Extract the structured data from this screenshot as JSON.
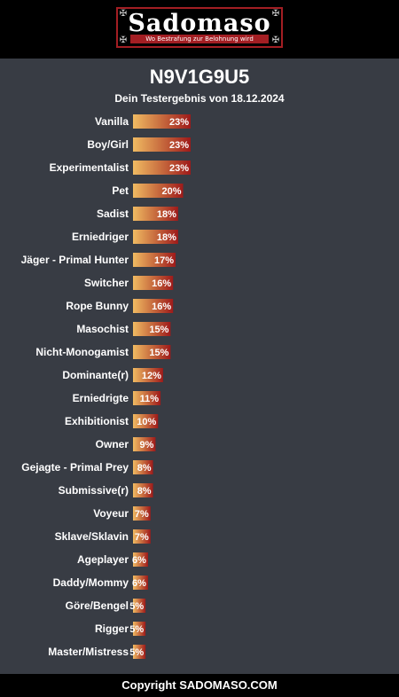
{
  "header": {
    "logo_title": "Sadomaso",
    "logo_subtitle": "Wo Bestrafung zur Belohnung wird",
    "logo_corner_icon": "ornament-icon"
  },
  "result": {
    "id": "N9V1G9U5",
    "subtitle": "Dein Testergebnis von 18.12.2024"
  },
  "chart_data": {
    "type": "bar",
    "orientation": "horizontal",
    "categories": [
      "Vanilla",
      "Boy/Girl",
      "Experimentalist",
      "Pet",
      "Sadist",
      "Erniedriger",
      "Jäger - Primal Hunter",
      "Switcher",
      "Rope Bunny",
      "Masochist",
      "Nicht-Monogamist",
      "Dominante(r)",
      "Erniedrigte",
      "Exhibitionist",
      "Owner",
      "Gejagte - Primal Prey",
      "Submissive(r)",
      "Voyeur",
      "Sklave/Sklavin",
      "Ageplayer",
      "Daddy/Mommy",
      "Göre/Bengel",
      "Rigger",
      "Master/Mistress"
    ],
    "values": [
      23,
      23,
      23,
      20,
      18,
      18,
      17,
      16,
      16,
      15,
      15,
      12,
      11,
      10,
      9,
      8,
      8,
      7,
      7,
      6,
      6,
      5,
      5,
      5
    ],
    "labels": [
      "23%",
      "23%",
      "23%",
      "20%",
      "18%",
      "18%",
      "17%",
      "16%",
      "16%",
      "15%",
      "15%",
      "12%",
      "11%",
      "10%",
      "9%",
      "8%",
      "8%",
      "7%",
      "7%",
      "6%",
      "6%",
      "5%",
      "5%",
      "5%"
    ],
    "value_unit": "%",
    "xlim": [
      0,
      100
    ],
    "grid": false,
    "legend": "none",
    "colors": {
      "gradient_start": "#f0bb62",
      "gradient_end": "#9e1a1a"
    }
  },
  "footer": {
    "copyright": "Copyright SADOMASO.COM"
  }
}
